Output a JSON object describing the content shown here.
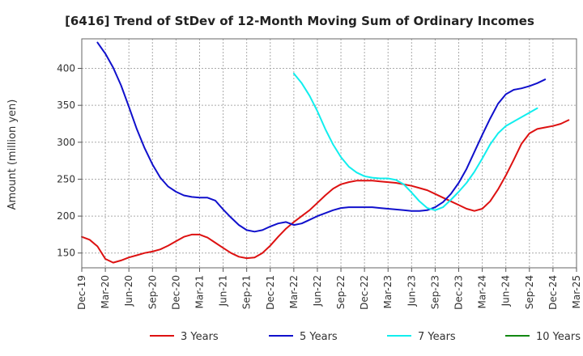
{
  "chart_data": {
    "type": "line",
    "title": "[6416]  Trend of StDev of 12-Month Moving Sum of Ordinary Incomes",
    "ylabel": "Amount (million yen)",
    "xlabel": "",
    "ylim": [
      130,
      440
    ],
    "yticks": [
      150,
      200,
      250,
      300,
      350,
      400
    ],
    "grid": true,
    "legend_position": "bottom",
    "x_tick_labels": [
      "Dec-19",
      "Mar-20",
      "Jun-20",
      "Sep-20",
      "Dec-20",
      "Mar-21",
      "Jun-21",
      "Sep-21",
      "Dec-21",
      "Mar-22",
      "Jun-22",
      "Sep-22",
      "Dec-22",
      "Mar-23",
      "Jun-23",
      "Sep-23",
      "Dec-23",
      "Mar-24",
      "Jun-24",
      "Sep-24",
      "Dec-24",
      "Mar-25"
    ],
    "series": [
      {
        "name": "3 Years",
        "color": "#dd1111",
        "start_index": 0,
        "values": [
          172,
          168,
          159,
          142,
          137,
          140,
          144,
          147,
          150,
          152,
          155,
          160,
          166,
          172,
          175,
          175,
          171,
          164,
          157,
          150,
          145,
          143,
          144,
          150,
          160,
          172,
          183,
          192,
          200,
          208,
          218,
          228,
          237,
          243,
          246,
          248,
          248,
          248,
          247,
          246,
          245,
          243,
          241,
          238,
          235,
          230,
          225,
          220,
          215,
          210,
          207,
          210,
          220,
          236,
          255,
          276,
          298,
          312,
          318,
          320,
          322,
          325,
          330
        ]
      },
      {
        "name": "5 Years",
        "color": "#1010cc",
        "start_index": 2,
        "values": [
          435,
          420,
          401,
          377,
          348,
          318,
          292,
          270,
          252,
          240,
          233,
          228,
          226,
          225,
          225,
          221,
          209,
          198,
          188,
          181,
          179,
          181,
          186,
          190,
          192,
          188,
          190,
          195,
          200,
          204,
          208,
          211,
          212,
          212,
          212,
          212,
          211,
          210,
          209,
          208,
          207,
          207,
          208,
          212,
          219,
          230,
          245,
          264,
          287,
          310,
          332,
          352,
          365,
          371,
          373,
          376,
          380,
          385
        ]
      },
      {
        "name": "7 Years",
        "color": "#11eeee",
        "start_index": 27,
        "values": [
          393,
          380,
          363,
          342,
          318,
          297,
          280,
          267,
          259,
          254,
          252,
          251,
          251,
          249,
          243,
          232,
          220,
          211,
          208,
          212,
          222,
          233,
          245,
          260,
          278,
          297,
          312,
          322,
          328,
          334,
          340,
          346
        ]
      },
      {
        "name": "10 Years",
        "color": "#118811",
        "start_index": 0,
        "values": []
      }
    ]
  }
}
